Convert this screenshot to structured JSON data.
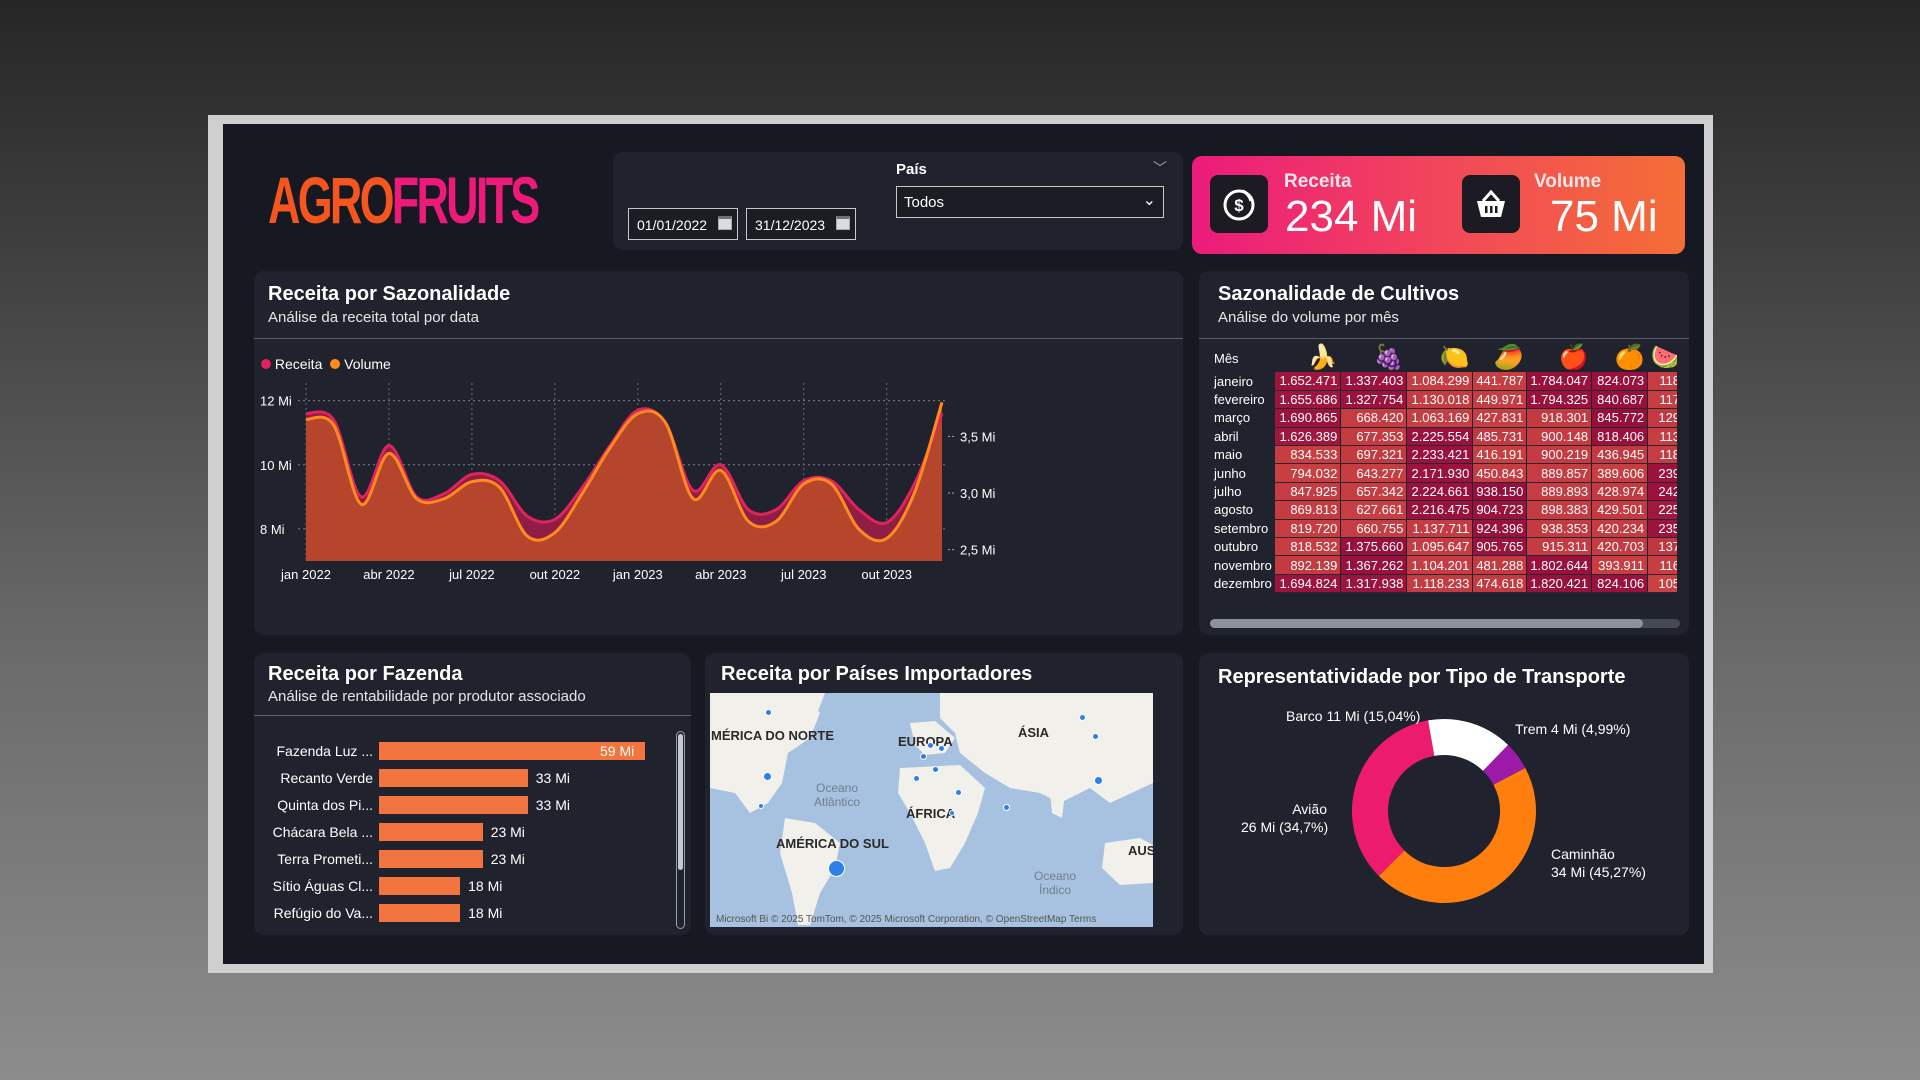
{
  "logo": {
    "part1": "AGRO",
    "part2": "FRUITS"
  },
  "filters": {
    "date_start": "01/01/2022",
    "date_end": "31/12/2023",
    "country_label": "País",
    "country_value": "Todos"
  },
  "kpis": {
    "revenue_label": "Receita",
    "revenue_value": "234 Mi",
    "volume_label": "Volume",
    "volume_value": "75 Mi"
  },
  "season_chart": {
    "title": "Receita por Sazonalidade",
    "subtitle": "Análise da receita total por data",
    "legend": [
      "Receita",
      "Volume"
    ],
    "left_ticks": [
      "12 Mi",
      "10 Mi",
      "8 Mi"
    ],
    "right_ticks": [
      "3,5 Mi",
      "3,0 Mi",
      "2,5 Mi"
    ],
    "x_ticks": [
      "jan 2022",
      "abr 2022",
      "jul 2022",
      "out 2022",
      "jan 2023",
      "abr 2023",
      "jul 2023",
      "out 2023"
    ]
  },
  "chart_data": {
    "type": "area",
    "x": [
      "jan 2022",
      "fev 2022",
      "mar 2022",
      "abr 2022",
      "mai 2022",
      "jun 2022",
      "jul 2022",
      "ago 2022",
      "set 2022",
      "out 2022",
      "nov 2022",
      "dez 2022",
      "jan 2023",
      "fev 2023",
      "mar 2023",
      "abr 2023",
      "mai 2023",
      "jun 2023",
      "jul 2023",
      "ago 2023",
      "set 2023",
      "out 2023",
      "nov 2023",
      "dez 2023"
    ],
    "ylim": [
      7.0,
      12.3
    ],
    "y2lim": [
      2.4,
      3.9
    ],
    "series": [
      {
        "name": "Receita",
        "values": [
          11.6,
          11.4,
          9.0,
          10.6,
          9.0,
          9.1,
          9.7,
          9.5,
          8.4,
          8.3,
          9.3,
          10.6,
          11.7,
          11.3,
          9.2,
          10.0,
          8.6,
          8.6,
          9.5,
          9.5,
          8.6,
          8.2,
          9.4,
          11.6
        ],
        "color": "#e0225f"
      },
      {
        "name": "Volume",
        "values": [
          3.65,
          3.6,
          2.9,
          3.35,
          2.95,
          2.95,
          3.1,
          3.05,
          2.62,
          2.65,
          3.0,
          3.4,
          3.7,
          3.62,
          2.95,
          3.2,
          2.75,
          2.75,
          3.08,
          3.08,
          2.68,
          2.6,
          3.0,
          3.8
        ],
        "color": "#ff8a1e"
      }
    ]
  },
  "heatmap": {
    "title": "Sazonalidade de Cultivos",
    "subtitle": "Análise do volume por mês",
    "month_header": "Mês",
    "fruits": [
      "🍌",
      "🍇",
      "🍋",
      "🥭",
      "🍎",
      "🍊",
      "🍉"
    ],
    "months": [
      "janeiro",
      "fevereiro",
      "março",
      "abril",
      "maio",
      "junho",
      "julho",
      "agosto",
      "setembro",
      "outubro",
      "novembro",
      "dezembro"
    ],
    "rows": [
      [
        "1.652.471",
        "1.337.403",
        "1.084.299",
        "441.787",
        "1.784.047",
        "824.073",
        "118"
      ],
      [
        "1.655.686",
        "1.327.754",
        "1.130.018",
        "449.971",
        "1.794.325",
        "840.687",
        "117"
      ],
      [
        "1.690.865",
        "668.420",
        "1.063.169",
        "427.831",
        "918.301",
        "845.772",
        "129"
      ],
      [
        "1.626.389",
        "677.353",
        "2.225.554",
        "485.731",
        "900.148",
        "818.406",
        "113"
      ],
      [
        "834.533",
        "697.321",
        "2.233.421",
        "416.191",
        "900.219",
        "436.945",
        "118"
      ],
      [
        "794.032",
        "643.277",
        "2.171.930",
        "450.843",
        "889.857",
        "389.606",
        "239"
      ],
      [
        "847.925",
        "657.342",
        "2.224.661",
        "938.150",
        "889.893",
        "428.974",
        "242"
      ],
      [
        "869.813",
        "627.661",
        "2.216.475",
        "904.723",
        "898.383",
        "429.501",
        "225"
      ],
      [
        "819.720",
        "660.755",
        "1.137.711",
        "924.396",
        "938.353",
        "420.234",
        "235"
      ],
      [
        "818.532",
        "1.375.660",
        "1.095.647",
        "905.765",
        "915.311",
        "420.703",
        "137"
      ],
      [
        "892.139",
        "1.367.262",
        "1.104.201",
        "481.288",
        "1.802.644",
        "393.911",
        "116"
      ],
      [
        "1.694.824",
        "1.317.938",
        "1.118.233",
        "474.618",
        "1.820.421",
        "824.106",
        "105"
      ]
    ]
  },
  "farms": {
    "title": "Receita por Fazenda",
    "subtitle": "Análise de rentabilidade por produtor associado",
    "items": [
      {
        "label": "Fazenda Luz ...",
        "value": 59,
        "text": "59 Mi"
      },
      {
        "label": "Recanto Verde",
        "value": 33,
        "text": "33 Mi"
      },
      {
        "label": "Quinta dos Pi...",
        "value": 33,
        "text": "33 Mi"
      },
      {
        "label": "Chácara Bela ...",
        "value": 23,
        "text": "23 Mi"
      },
      {
        "label": "Terra Prometi...",
        "value": 23,
        "text": "23 Mi"
      },
      {
        "label": "Sítio Águas Cl...",
        "value": 18,
        "text": "18 Mi"
      },
      {
        "label": "Refúgio do Va...",
        "value": 18,
        "text": "18 Mi"
      }
    ]
  },
  "map": {
    "title": "Receita por Países Importadores",
    "labels": [
      "MÉRICA DO NORTE",
      "EUROPA",
      "ÁSIA",
      "ÁFRICA",
      "AMÉRICA DO SUL",
      "AUS"
    ],
    "ocean1": "Oceano",
    "ocean1b": "Atlântico",
    "ocean2": "Oceano",
    "ocean2b": "Índico",
    "attribution": "© 2025 TomTom, © 2025 Microsoft Corporation, © OpenStreetMap  Terms",
    "brand": "Microsoft Bi"
  },
  "transport": {
    "title": "Representatividade por Tipo de Transporte",
    "slices": [
      {
        "name": "Caminhão",
        "value": 45.27,
        "text": "34 Mi (45,27%)",
        "color": "#ff7f0e"
      },
      {
        "name": "Avião",
        "value": 34.7,
        "text": "26 Mi (34,7%)",
        "color": "#ec1b6e"
      },
      {
        "name": "Barco",
        "value": 15.04,
        "text": "11 Mi (15,04%)",
        "color": "#ffffff"
      },
      {
        "name": "Trem",
        "value": 4.99,
        "text": "4 Mi (4,99%)",
        "color": "#9b1aa8"
      }
    ],
    "label_barco": "Barco 11 Mi (15,04%)",
    "label_trem": "Trem 4 Mi (4,99%)",
    "label_aviao": "Avião",
    "label_aviao2": "26 Mi (34,7%)",
    "label_caminhao": "Caminhão",
    "label_caminhao2": "34 Mi (45,27%)"
  }
}
